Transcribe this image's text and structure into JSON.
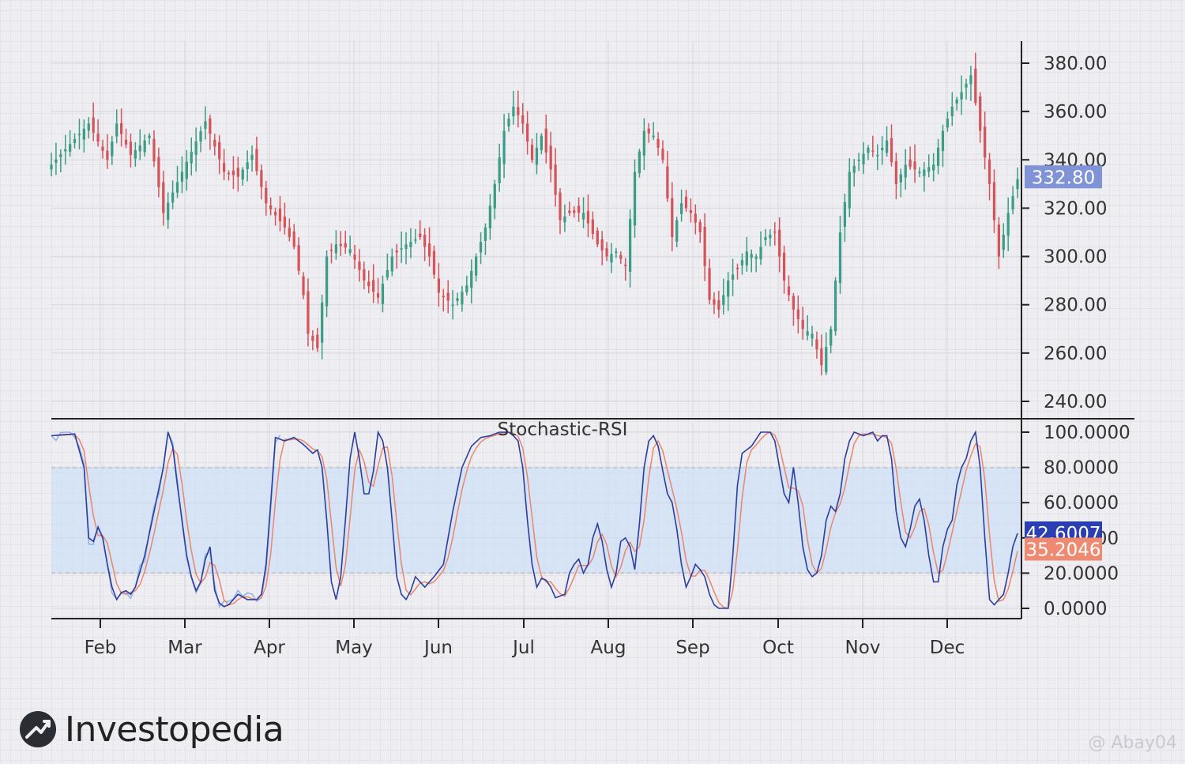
{
  "chart_data": [
    {
      "type": "candlestick",
      "months": [
        "Feb",
        "Mar",
        "Apr",
        "May",
        "Jun",
        "Jul",
        "Aug",
        "Sep",
        "Oct",
        "Nov",
        "Dec"
      ],
      "ylim": [
        232,
        388
      ],
      "yticks": [
        "380.00",
        "360.00",
        "340.00",
        "320.00",
        "300.00",
        "280.00",
        "260.00",
        "240.00"
      ],
      "last_price": "332.80",
      "anchors": [
        [
          0,
          338
        ],
        [
          8,
          355
        ],
        [
          12,
          340
        ],
        [
          14,
          355
        ],
        [
          17,
          342
        ],
        [
          21,
          350
        ],
        [
          24,
          318
        ],
        [
          28,
          335
        ],
        [
          33,
          356
        ],
        [
          37,
          335
        ],
        [
          40,
          333
        ],
        [
          43,
          342
        ],
        [
          46,
          322
        ],
        [
          50,
          312
        ],
        [
          52,
          304
        ],
        [
          54,
          284
        ],
        [
          55,
          268
        ],
        [
          57,
          262
        ],
        [
          59,
          300
        ],
        [
          61,
          305
        ],
        [
          64,
          303
        ],
        [
          67,
          290
        ],
        [
          70,
          283
        ],
        [
          73,
          300
        ],
        [
          76,
          305
        ],
        [
          79,
          308
        ],
        [
          81,
          300
        ],
        [
          83,
          285
        ],
        [
          86,
          280
        ],
        [
          89,
          288
        ],
        [
          91,
          300
        ],
        [
          93,
          312
        ],
        [
          95,
          330
        ],
        [
          97,
          352
        ],
        [
          99,
          362
        ],
        [
          101,
          355
        ],
        [
          103,
          340
        ],
        [
          105,
          350
        ],
        [
          107,
          336
        ],
        [
          109,
          315
        ],
        [
          111,
          318
        ],
        [
          114,
          318
        ],
        [
          117,
          305
        ],
        [
          119,
          300
        ],
        [
          121,
          302
        ],
        [
          123,
          296
        ],
        [
          125,
          335
        ],
        [
          127,
          352
        ],
        [
          129,
          350
        ],
        [
          131,
          340
        ],
        [
          133,
          308
        ],
        [
          135,
          322
        ],
        [
          137,
          318
        ],
        [
          139,
          310
        ],
        [
          141,
          282
        ],
        [
          143,
          278
        ],
        [
          145,
          290
        ],
        [
          147,
          295
        ],
        [
          149,
          302
        ],
        [
          151,
          300
        ],
        [
          153,
          308
        ],
        [
          155,
          310
        ],
        [
          157,
          290
        ],
        [
          159,
          278
        ],
        [
          161,
          270
        ],
        [
          163,
          268
        ],
        [
          165,
          255
        ],
        [
          167,
          270
        ],
        [
          169,
          310
        ],
        [
          171,
          335
        ],
        [
          173,
          340
        ],
        [
          175,
          345
        ],
        [
          177,
          342
        ],
        [
          179,
          348
        ],
        [
          181,
          330
        ],
        [
          183,
          338
        ],
        [
          186,
          335
        ],
        [
          189,
          338
        ],
        [
          191,
          352
        ],
        [
          193,
          362
        ],
        [
          195,
          368
        ],
        [
          197,
          375
        ],
        [
          199,
          352
        ],
        [
          201,
          330
        ],
        [
          203,
          300
        ],
        [
          205,
          318
        ],
        [
          207,
          332
        ]
      ]
    },
    {
      "type": "line",
      "title": "Stochastic-RSI",
      "ylim": [
        0,
        100
      ],
      "yticks": [
        "100.0000",
        "80.0000",
        "60.0000",
        "40.0000",
        "20.0000",
        "0.0000"
      ],
      "overbought": 80,
      "oversold": 20,
      "last_values": {
        "k": "42.6007",
        "d": "35.2046"
      },
      "anchors": [
        [
          0,
          98
        ],
        [
          5,
          99
        ],
        [
          7,
          80
        ],
        [
          8,
          40
        ],
        [
          9,
          38
        ],
        [
          10,
          46
        ],
        [
          11,
          40
        ],
        [
          12,
          25
        ],
        [
          13,
          12
        ],
        [
          14,
          5
        ],
        [
          15,
          9
        ],
        [
          16,
          10
        ],
        [
          17,
          8
        ],
        [
          18,
          12
        ],
        [
          20,
          30
        ],
        [
          22,
          55
        ],
        [
          24,
          80
        ],
        [
          25,
          100
        ],
        [
          26,
          92
        ],
        [
          27,
          70
        ],
        [
          28,
          50
        ],
        [
          29,
          30
        ],
        [
          30,
          18
        ],
        [
          31,
          10
        ],
        [
          32,
          15
        ],
        [
          33,
          28
        ],
        [
          34,
          35
        ],
        [
          35,
          10
        ],
        [
          36,
          3
        ],
        [
          37,
          1
        ],
        [
          38,
          2
        ],
        [
          40,
          8
        ],
        [
          42,
          5
        ],
        [
          44,
          5
        ],
        [
          45,
          8
        ],
        [
          46,
          25
        ],
        [
          47,
          60
        ],
        [
          48,
          97
        ],
        [
          50,
          95
        ],
        [
          52,
          97
        ],
        [
          54,
          93
        ],
        [
          56,
          88
        ],
        [
          57,
          90
        ],
        [
          58,
          80
        ],
        [
          59,
          50
        ],
        [
          60,
          15
        ],
        [
          61,
          5
        ],
        [
          62,
          18
        ],
        [
          63,
          50
        ],
        [
          64,
          85
        ],
        [
          65,
          100
        ],
        [
          66,
          85
        ],
        [
          67,
          65
        ],
        [
          68,
          65
        ],
        [
          69,
          78
        ],
        [
          70,
          100
        ],
        [
          71,
          95
        ],
        [
          72,
          80
        ],
        [
          73,
          50
        ],
        [
          74,
          18
        ],
        [
          75,
          8
        ],
        [
          76,
          5
        ],
        [
          77,
          10
        ],
        [
          78,
          18
        ],
        [
          80,
          12
        ],
        [
          82,
          18
        ],
        [
          84,
          25
        ],
        [
          86,
          55
        ],
        [
          88,
          80
        ],
        [
          90,
          92
        ],
        [
          92,
          97
        ],
        [
          94,
          98
        ],
        [
          96,
          100
        ],
        [
          98,
          100
        ],
        [
          99,
          98
        ],
        [
          100,
          95
        ],
        [
          101,
          80
        ],
        [
          102,
          50
        ],
        [
          103,
          25
        ],
        [
          104,
          12
        ],
        [
          105,
          17
        ],
        [
          106,
          16
        ],
        [
          107,
          12
        ],
        [
          108,
          6
        ],
        [
          110,
          8
        ],
        [
          111,
          20
        ],
        [
          112,
          25
        ],
        [
          113,
          28
        ],
        [
          114,
          20
        ],
        [
          115,
          25
        ],
        [
          116,
          40
        ],
        [
          117,
          48
        ],
        [
          118,
          38
        ],
        [
          119,
          22
        ],
        [
          120,
          12
        ],
        [
          121,
          20
        ],
        [
          122,
          38
        ],
        [
          123,
          40
        ],
        [
          124,
          35
        ],
        [
          125,
          22
        ],
        [
          126,
          48
        ],
        [
          127,
          80
        ],
        [
          128,
          95
        ],
        [
          129,
          98
        ],
        [
          130,
          92
        ],
        [
          131,
          78
        ],
        [
          132,
          65
        ],
        [
          133,
          60
        ],
        [
          134,
          45
        ],
        [
          135,
          25
        ],
        [
          136,
          12
        ],
        [
          137,
          18
        ],
        [
          138,
          25
        ],
        [
          139,
          22
        ],
        [
          140,
          18
        ],
        [
          141,
          8
        ],
        [
          142,
          2
        ],
        [
          143,
          0
        ],
        [
          145,
          0
        ],
        [
          146,
          30
        ],
        [
          147,
          70
        ],
        [
          148,
          88
        ],
        [
          150,
          92
        ],
        [
          152,
          100
        ],
        [
          154,
          100
        ],
        [
          155,
          95
        ],
        [
          156,
          80
        ],
        [
          157,
          65
        ],
        [
          158,
          60
        ],
        [
          159,
          80
        ],
        [
          160,
          60
        ],
        [
          161,
          35
        ],
        [
          162,
          22
        ],
        [
          163,
          18
        ],
        [
          164,
          20
        ],
        [
          165,
          30
        ],
        [
          166,
          50
        ],
        [
          167,
          58
        ],
        [
          168,
          55
        ],
        [
          169,
          65
        ],
        [
          170,
          85
        ],
        [
          171,
          95
        ],
        [
          172,
          100
        ],
        [
          174,
          98
        ],
        [
          176,
          100
        ],
        [
          177,
          95
        ],
        [
          178,
          98
        ],
        [
          179,
          98
        ],
        [
          180,
          85
        ],
        [
          181,
          55
        ],
        [
          182,
          40
        ],
        [
          183,
          35
        ],
        [
          184,
          45
        ],
        [
          185,
          58
        ],
        [
          186,
          62
        ],
        [
          187,
          50
        ],
        [
          188,
          30
        ],
        [
          189,
          15
        ],
        [
          190,
          15
        ],
        [
          191,
          35
        ],
        [
          192,
          45
        ],
        [
          193,
          50
        ],
        [
          194,
          70
        ],
        [
          195,
          80
        ],
        [
          196,
          85
        ],
        [
          197,
          95
        ],
        [
          198,
          100
        ],
        [
          199,
          80
        ],
        [
          200,
          40
        ],
        [
          201,
          5
        ],
        [
          202,
          2
        ],
        [
          203,
          5
        ],
        [
          204,
          8
        ],
        [
          205,
          20
        ],
        [
          206,
          35
        ],
        [
          207,
          42.6
        ]
      ]
    }
  ],
  "branding": {
    "name": "Investopedia"
  },
  "watermark": "@ Abay04"
}
